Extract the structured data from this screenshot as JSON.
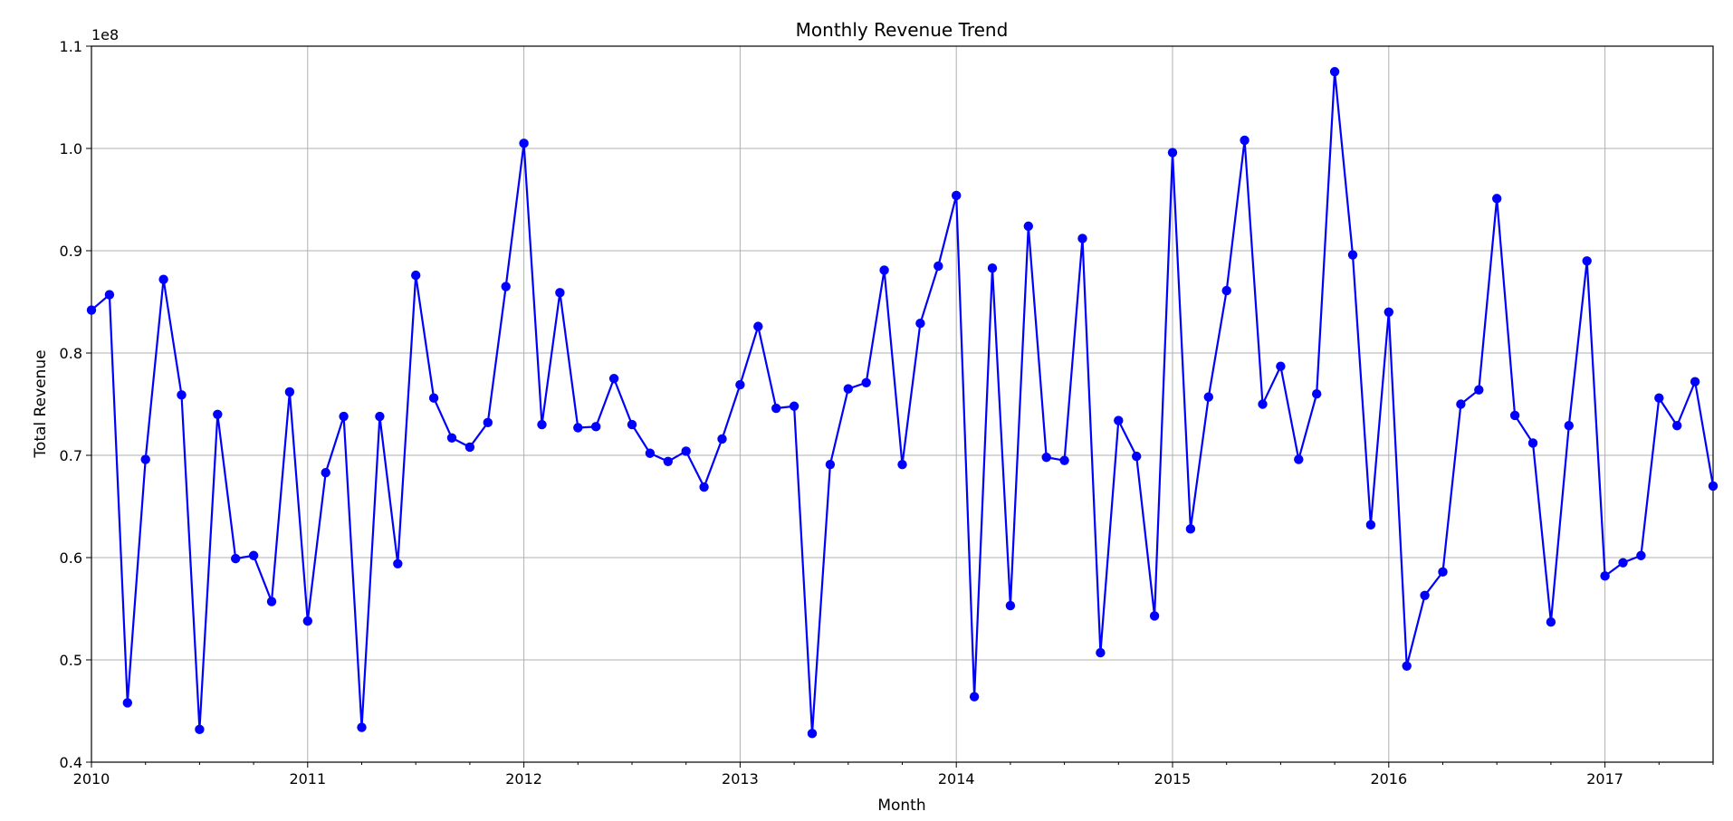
{
  "chart_data": {
    "type": "line",
    "title": "Monthly Revenue Trend",
    "xlabel": "Month",
    "ylabel": "Total Revenue",
    "y_offset_label": "1e8",
    "x_tick_labels": [
      "2010",
      "2011",
      "2012",
      "2013",
      "2014",
      "2015",
      "2016",
      "2017"
    ],
    "y_tick_labels": [
      "0.4",
      "0.5",
      "0.6",
      "0.7",
      "0.8",
      "0.9",
      "1.0",
      "1.1"
    ],
    "xlim": [
      "2010-01",
      "2017-07"
    ],
    "ylim": [
      0.4,
      1.1
    ],
    "y_scale_factor": 100000000,
    "grid": true,
    "marker": "circle",
    "color": "#0000ff",
    "series": [
      {
        "x": [
          "2010-01",
          "2010-02",
          "2010-03",
          "2010-04",
          "2010-05",
          "2010-06",
          "2010-07",
          "2010-08",
          "2010-09",
          "2010-10",
          "2010-11",
          "2010-12",
          "2011-01",
          "2011-02",
          "2011-03",
          "2011-04",
          "2011-05",
          "2011-06",
          "2011-07",
          "2011-08",
          "2011-09",
          "2011-10",
          "2011-11",
          "2011-12",
          "2012-01",
          "2012-02",
          "2012-03",
          "2012-04",
          "2012-05",
          "2012-06",
          "2012-07",
          "2012-08",
          "2012-09",
          "2012-10",
          "2012-11",
          "2012-12",
          "2013-01",
          "2013-02",
          "2013-03",
          "2013-04",
          "2013-05",
          "2013-06",
          "2013-07",
          "2013-08",
          "2013-09",
          "2013-10",
          "2013-11",
          "2013-12",
          "2014-01",
          "2014-02",
          "2014-03",
          "2014-04",
          "2014-05",
          "2014-06",
          "2014-07",
          "2014-08",
          "2014-09",
          "2014-10",
          "2014-11",
          "2014-12",
          "2015-01",
          "2015-02",
          "2015-03",
          "2015-04",
          "2015-05",
          "2015-06",
          "2015-07",
          "2015-08",
          "2015-09",
          "2015-10",
          "2015-11",
          "2015-12",
          "2016-01",
          "2016-02",
          "2016-03",
          "2016-04",
          "2016-05",
          "2016-06",
          "2016-07",
          "2016-08",
          "2016-09",
          "2016-10",
          "2016-11",
          "2016-12",
          "2017-01",
          "2017-02",
          "2017-03",
          "2017-04",
          "2017-05",
          "2017-06",
          "2017-07"
        ],
        "values": [
          0.842,
          0.857,
          0.458,
          0.696,
          0.872,
          0.759,
          0.432,
          0.74,
          0.599,
          0.602,
          0.557,
          0.762,
          0.538,
          0.683,
          0.738,
          0.434,
          0.738,
          0.594,
          0.876,
          0.756,
          0.717,
          0.708,
          0.732,
          0.865,
          1.005,
          0.73,
          0.859,
          0.727,
          0.728,
          0.775,
          0.73,
          0.702,
          0.694,
          0.704,
          0.669,
          0.716,
          0.769,
          0.826,
          0.746,
          0.748,
          0.428,
          0.691,
          0.765,
          0.771,
          0.881,
          0.691,
          0.829,
          0.885,
          0.954,
          0.464,
          0.883,
          0.553,
          0.924,
          0.698,
          0.695,
          0.912,
          0.507,
          0.734,
          0.699,
          0.543,
          0.996,
          0.628,
          0.757,
          0.861,
          1.008,
          0.75,
          0.787,
          0.696,
          0.76,
          1.075,
          0.896,
          0.632,
          0.84,
          0.494,
          0.563,
          0.586,
          0.75,
          0.764,
          0.951,
          0.739,
          0.712,
          0.537,
          0.729,
          0.89,
          0.582,
          0.595,
          0.602,
          0.756,
          0.729,
          0.772,
          0.67
        ]
      }
    ]
  }
}
